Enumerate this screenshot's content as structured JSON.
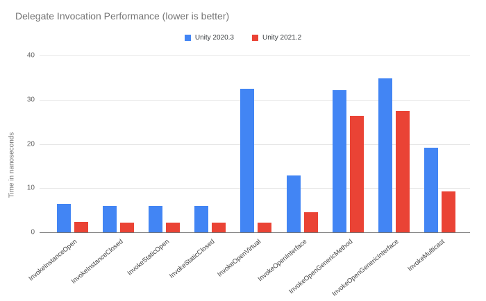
{
  "title": "Delegate Invocation Performance (lower is better)",
  "y_axis_title": "Time in nanoseconds",
  "colors": {
    "series_blue": "#4285f4",
    "series_red": "#ea4335",
    "gridline": "#e6e6e6",
    "axis_line": "#757575",
    "title_text": "#757575",
    "tick_text": "#616161",
    "category_text": "#424242"
  },
  "chart_data": {
    "type": "bar",
    "title": "Delegate Invocation Performance (lower is better)",
    "xlabel": "",
    "ylabel": "Time in nanoseconds",
    "ylim": [
      0,
      40
    ],
    "yticks": [
      0,
      10,
      20,
      30,
      40
    ],
    "grid": true,
    "legend_position": "top-center",
    "categories": [
      "InvokeInstanceOpen",
      "InvokeInstanceClosed",
      "InvokeStaticOpen",
      "InvokeStaticClosed",
      "InvokeOpenVirtual",
      "InvokeOpenInterface",
      "InvokeOpenGenericMethod",
      "InvokeOpenGenericInterface",
      "InvokeMulticast"
    ],
    "series": [
      {
        "name": "Unity 2020.3",
        "color": "#4285f4",
        "values": [
          6.5,
          6.0,
          6.0,
          5.9,
          32.4,
          12.8,
          32.1,
          34.8,
          19.1
        ]
      },
      {
        "name": "Unity 2021.2",
        "color": "#ea4335",
        "values": [
          2.4,
          2.2,
          2.2,
          2.2,
          2.2,
          4.5,
          26.4,
          27.4,
          9.2
        ]
      }
    ]
  }
}
